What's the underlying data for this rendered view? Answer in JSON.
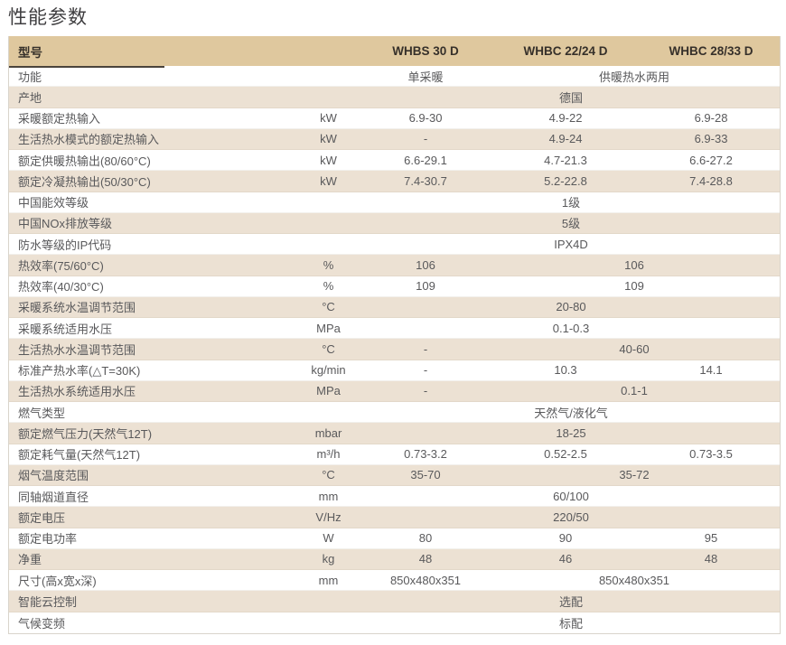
{
  "page": {
    "title": "性能参数"
  },
  "colors": {
    "header_bg": "#dfc89e",
    "row_alt_bg": "#ece1d3",
    "row_bg": "#ffffff",
    "header_text": "#36302a",
    "body_text": "#59595b",
    "title_text": "#3f3e40",
    "table_border": "#d9d4cb",
    "header_underline": "#4a443c"
  },
  "table": {
    "columns": [
      "型号",
      "WHBS 30 D",
      "WHBC 22/24 D",
      "WHBC 28/33 D"
    ],
    "rows": [
      {
        "label": "功能",
        "unit": "",
        "cells": [
          {
            "text": "单采暖",
            "span": 1
          },
          {
            "text": "供暖热水两用",
            "span": 2
          }
        ]
      },
      {
        "label": "产地",
        "unit": "",
        "cells": [
          {
            "text": "德国",
            "span": 3
          }
        ]
      },
      {
        "label": "采暖额定热输入",
        "unit": "kW",
        "cells": [
          {
            "text": "6.9-30",
            "span": 1
          },
          {
            "text": "4.9-22",
            "span": 1
          },
          {
            "text": "6.9-28",
            "span": 1
          }
        ]
      },
      {
        "label": "生活热水模式的额定热输入",
        "unit": "kW",
        "cells": [
          {
            "text": "-",
            "span": 1
          },
          {
            "text": "4.9-24",
            "span": 1
          },
          {
            "text": "6.9-33",
            "span": 1
          }
        ]
      },
      {
        "label": "额定供暖热输出(80/60°C)",
        "unit": "kW",
        "cells": [
          {
            "text": "6.6-29.1",
            "span": 1
          },
          {
            "text": "4.7-21.3",
            "span": 1
          },
          {
            "text": "6.6-27.2",
            "span": 1
          }
        ]
      },
      {
        "label": "额定冷凝热输出(50/30°C)",
        "unit": "kW",
        "cells": [
          {
            "text": "7.4-30.7",
            "span": 1
          },
          {
            "text": "5.2-22.8",
            "span": 1
          },
          {
            "text": "7.4-28.8",
            "span": 1
          }
        ]
      },
      {
        "label": "中国能效等级",
        "unit": "",
        "cells": [
          {
            "text": "1级",
            "span": 3
          }
        ]
      },
      {
        "label": "中国NOx排放等级",
        "unit": "",
        "cells": [
          {
            "text": "5级",
            "span": 3
          }
        ]
      },
      {
        "label": "防水等级的IP代码",
        "unit": "",
        "cells": [
          {
            "text": "IPX4D",
            "span": 3
          }
        ]
      },
      {
        "label": "热效率(75/60°C)",
        "unit": "%",
        "cells": [
          {
            "text": "106",
            "span": 1
          },
          {
            "text": "106",
            "span": 2
          }
        ]
      },
      {
        "label": "热效率(40/30°C)",
        "unit": "%",
        "cells": [
          {
            "text": "109",
            "span": 1
          },
          {
            "text": "109",
            "span": 2
          }
        ]
      },
      {
        "label": "采暖系统水温调节范围",
        "unit": "°C",
        "cells": [
          {
            "text": "20-80",
            "span": 3
          }
        ]
      },
      {
        "label": "采暖系统适用水压",
        "unit": "MPa",
        "cells": [
          {
            "text": "0.1-0.3",
            "span": 3
          }
        ]
      },
      {
        "label": "生活热水水温调节范围",
        "unit": "°C",
        "cells": [
          {
            "text": "-",
            "span": 1
          },
          {
            "text": "40-60",
            "span": 2
          }
        ]
      },
      {
        "label": "标准产热水率(△T=30K)",
        "unit": "kg/min",
        "cells": [
          {
            "text": "-",
            "span": 1
          },
          {
            "text": "10.3",
            "span": 1
          },
          {
            "text": "14.1",
            "span": 1
          }
        ]
      },
      {
        "label": "生活热水系统适用水压",
        "unit": "MPa",
        "cells": [
          {
            "text": "-",
            "span": 1
          },
          {
            "text": "0.1-1",
            "span": 2
          }
        ]
      },
      {
        "label": "燃气类型",
        "unit": "",
        "cells": [
          {
            "text": "天然气/液化气",
            "span": 3
          }
        ]
      },
      {
        "label": "额定燃气压力(天然气12T)",
        "unit": "mbar",
        "cells": [
          {
            "text": "18-25",
            "span": 3
          }
        ]
      },
      {
        "label": "额定耗气量(天然气12T)",
        "unit": "m³/h",
        "cells": [
          {
            "text": "0.73-3.2",
            "span": 1
          },
          {
            "text": "0.52-2.5",
            "span": 1
          },
          {
            "text": "0.73-3.5",
            "span": 1
          }
        ]
      },
      {
        "label": "烟气温度范围",
        "unit": "°C",
        "cells": [
          {
            "text": "35-70",
            "span": 1
          },
          {
            "text": "35-72",
            "span": 2
          }
        ]
      },
      {
        "label": "同轴烟道直径",
        "unit": "mm",
        "cells": [
          {
            "text": "60/100",
            "span": 3
          }
        ]
      },
      {
        "label": "额定电压",
        "unit": "V/Hz",
        "cells": [
          {
            "text": "220/50",
            "span": 3
          }
        ]
      },
      {
        "label": "额定电功率",
        "unit": "W",
        "cells": [
          {
            "text": "80",
            "span": 1
          },
          {
            "text": "90",
            "span": 1
          },
          {
            "text": "95",
            "span": 1
          }
        ]
      },
      {
        "label": "净重",
        "unit": "kg",
        "cells": [
          {
            "text": "48",
            "span": 1
          },
          {
            "text": "46",
            "span": 1
          },
          {
            "text": "48",
            "span": 1
          }
        ]
      },
      {
        "label": "尺寸(高x宽x深)",
        "unit": "mm",
        "cells": [
          {
            "text": "850x480x351",
            "span": 1
          },
          {
            "text": "850x480x351",
            "span": 2
          }
        ]
      },
      {
        "label": "智能云控制",
        "unit": "",
        "cells": [
          {
            "text": "选配",
            "span": 3
          }
        ]
      },
      {
        "label": "气候变频",
        "unit": "",
        "cells": [
          {
            "text": "标配",
            "span": 3
          }
        ]
      }
    ]
  }
}
